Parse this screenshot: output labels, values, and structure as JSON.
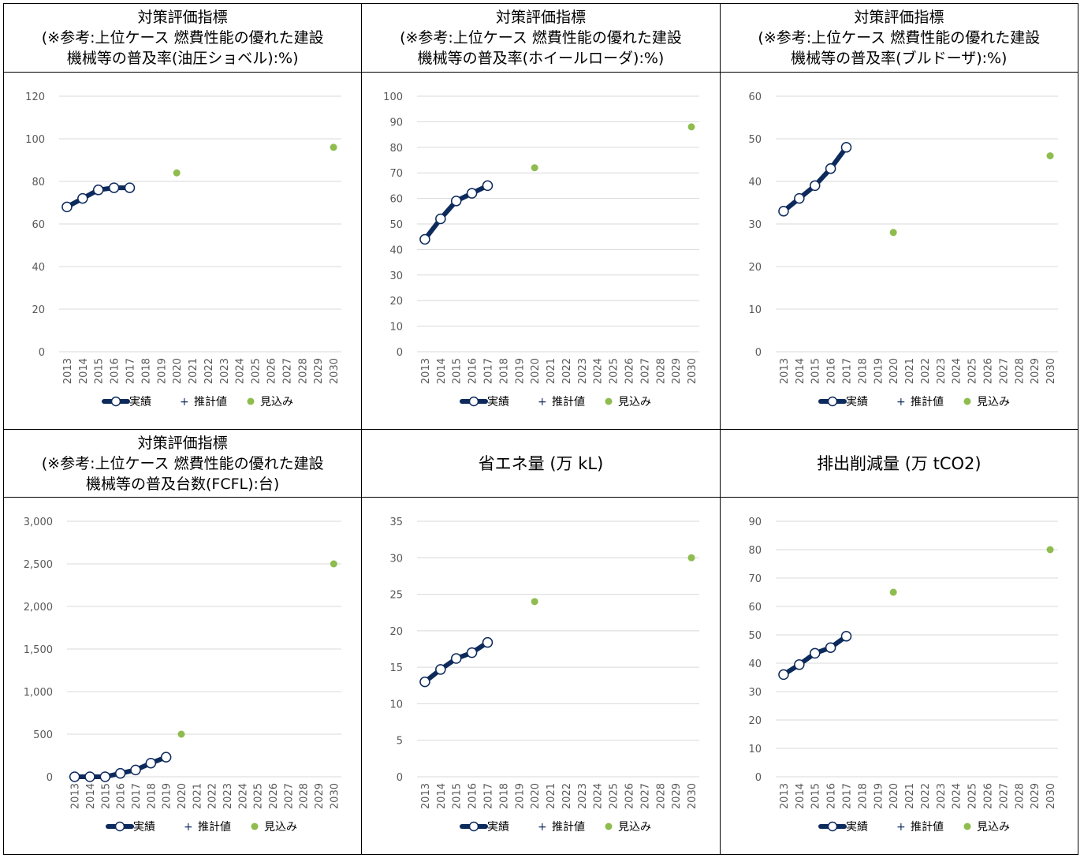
{
  "legend": {
    "actual": "実績",
    "estimate": "推計値",
    "forecast": "見込み"
  },
  "colors": {
    "actual_line": "#0d2a5c",
    "forecast_point": "#8fbc4e",
    "grid": "#d9d9d9",
    "axis_text": "#595959"
  },
  "panels": [
    {
      "title_lines": [
        "対策評価指標",
        "(※参考:上位ケース 燃費性能の優れた建設",
        "機械等の普及率(油圧ショベル):%)"
      ],
      "chart_data": {
        "type": "line",
        "categories": [
          "2013",
          "2014",
          "2015",
          "2016",
          "2017",
          "2018",
          "2019",
          "2020",
          "2021",
          "2022",
          "2023",
          "2024",
          "2025",
          "2026",
          "2027",
          "2028",
          "2029",
          "2030"
        ],
        "ylim": [
          0,
          120
        ],
        "ystep": 20,
        "ytick_labels": [
          "0",
          "20",
          "40",
          "60",
          "80",
          "100",
          "120"
        ],
        "series": [
          {
            "name": "実績",
            "x": [
              "2013",
              "2014",
              "2015",
              "2016",
              "2017"
            ],
            "values": [
              68,
              72,
              76,
              77,
              77
            ]
          },
          {
            "name": "見込み",
            "x": [
              "2020",
              "2030"
            ],
            "values": [
              84,
              96
            ]
          }
        ]
      }
    },
    {
      "title_lines": [
        "対策評価指標",
        "(※参考:上位ケース 燃費性能の優れた建設",
        "機械等の普及率(ホイールローダ):%)"
      ],
      "chart_data": {
        "type": "line",
        "categories": [
          "2013",
          "2014",
          "2015",
          "2016",
          "2017",
          "2018",
          "2019",
          "2020",
          "2021",
          "2022",
          "2023",
          "2024",
          "2025",
          "2026",
          "2027",
          "2028",
          "2029",
          "2030"
        ],
        "ylim": [
          0,
          100
        ],
        "ystep": 10,
        "ytick_labels": [
          "0",
          "10",
          "20",
          "30",
          "40",
          "50",
          "60",
          "70",
          "80",
          "90",
          "100"
        ],
        "series": [
          {
            "name": "実績",
            "x": [
              "2013",
              "2014",
              "2015",
              "2016",
              "2017"
            ],
            "values": [
              44,
              52,
              59,
              62,
              65
            ]
          },
          {
            "name": "見込み",
            "x": [
              "2020",
              "2030"
            ],
            "values": [
              72,
              88
            ]
          }
        ]
      }
    },
    {
      "title_lines": [
        "対策評価指標",
        "(※参考:上位ケース 燃費性能の優れた建設",
        "機械等の普及率(ブルドーザ):%)"
      ],
      "chart_data": {
        "type": "line",
        "categories": [
          "2013",
          "2014",
          "2015",
          "2016",
          "2017",
          "2018",
          "2019",
          "2020",
          "2021",
          "2022",
          "2023",
          "2024",
          "2025",
          "2026",
          "2027",
          "2028",
          "2029",
          "2030"
        ],
        "ylim": [
          0,
          60
        ],
        "ystep": 10,
        "ytick_labels": [
          "0",
          "10",
          "20",
          "30",
          "40",
          "50",
          "60"
        ],
        "series": [
          {
            "name": "実績",
            "x": [
              "2013",
              "2014",
              "2015",
              "2016",
              "2017"
            ],
            "values": [
              33,
              36,
              39,
              43,
              48
            ]
          },
          {
            "name": "見込み",
            "x": [
              "2020",
              "2030"
            ],
            "values": [
              28,
              46
            ]
          }
        ]
      }
    },
    {
      "title_lines": [
        "対策評価指標",
        "(※参考:上位ケース 燃費性能の優れた建設",
        "機械等の普及台数(FCFL):台)"
      ],
      "chart_data": {
        "type": "line",
        "categories": [
          "2013",
          "2014",
          "2015",
          "2016",
          "2017",
          "2018",
          "2019",
          "2020",
          "2021",
          "2022",
          "2023",
          "2024",
          "2025",
          "2026",
          "2027",
          "2028",
          "2029",
          "2030"
        ],
        "ylim": [
          0,
          3000
        ],
        "ystep": 500,
        "ytick_labels": [
          "0",
          "500",
          "1,000",
          "1,500",
          "2,000",
          "2,500",
          "3,000"
        ],
        "series": [
          {
            "name": "実績",
            "x": [
              "2013",
              "2014",
              "2015",
              "2016",
              "2017",
              "2018",
              "2019"
            ],
            "values": [
              0,
              0,
              0,
              40,
              80,
              160,
              230
            ]
          },
          {
            "name": "見込み",
            "x": [
              "2020",
              "2030"
            ],
            "values": [
              500,
              2500
            ]
          }
        ]
      }
    },
    {
      "title_lines": [
        "省エネ量 (万 kL)"
      ],
      "chart_data": {
        "type": "line",
        "categories": [
          "2013",
          "2014",
          "2015",
          "2016",
          "2017",
          "2018",
          "2019",
          "2020",
          "2021",
          "2022",
          "2023",
          "2024",
          "2025",
          "2026",
          "2027",
          "2028",
          "2029",
          "2030"
        ],
        "ylim": [
          0,
          35
        ],
        "ystep": 5,
        "ytick_labels": [
          "0",
          "5",
          "10",
          "15",
          "20",
          "25",
          "30",
          "35"
        ],
        "series": [
          {
            "name": "実績",
            "x": [
              "2013",
              "2014",
              "2015",
              "2016",
              "2017"
            ],
            "values": [
              13,
              14.7,
              16.2,
              17,
              18.4
            ]
          },
          {
            "name": "見込み",
            "x": [
              "2020",
              "2030"
            ],
            "values": [
              24,
              30
            ]
          }
        ]
      }
    },
    {
      "title_lines": [
        "排出削減量 (万 tCO2)"
      ],
      "chart_data": {
        "type": "line",
        "categories": [
          "2013",
          "2014",
          "2015",
          "2016",
          "2017",
          "2018",
          "2019",
          "2020",
          "2021",
          "2022",
          "2023",
          "2024",
          "2025",
          "2026",
          "2027",
          "2028",
          "2029",
          "2030"
        ],
        "ylim": [
          0,
          90
        ],
        "ystep": 10,
        "ytick_labels": [
          "0",
          "10",
          "20",
          "30",
          "40",
          "50",
          "60",
          "70",
          "80",
          "90"
        ],
        "series": [
          {
            "name": "実績",
            "x": [
              "2013",
              "2014",
              "2015",
              "2016",
              "2017"
            ],
            "values": [
              36,
              39.5,
              43.5,
              45.5,
              49.5
            ]
          },
          {
            "name": "見込み",
            "x": [
              "2020",
              "2030"
            ],
            "values": [
              65,
              80
            ]
          }
        ]
      }
    }
  ]
}
